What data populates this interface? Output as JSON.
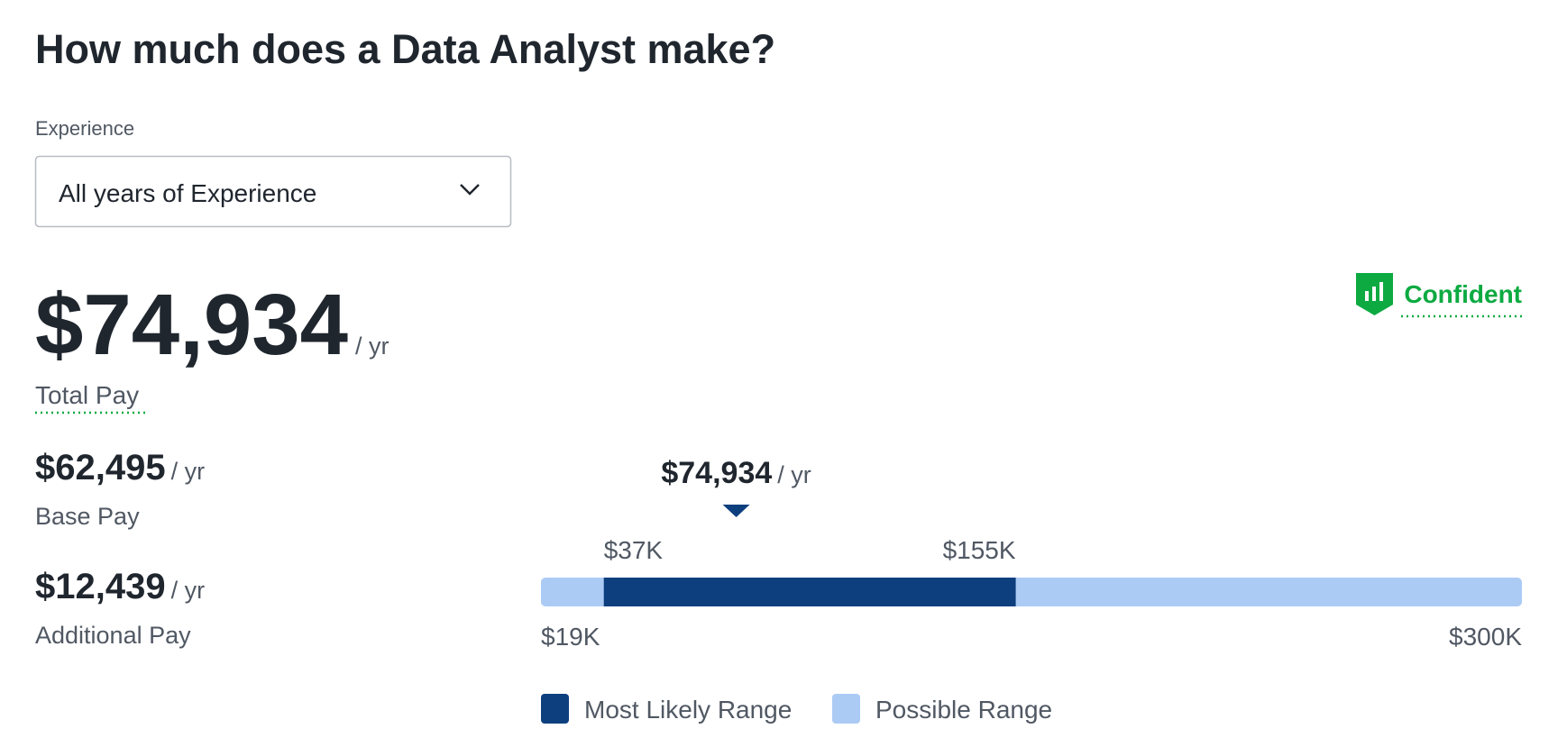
{
  "header": {
    "title": "How much does a Data Analyst make?"
  },
  "filter": {
    "label": "Experience",
    "selected": "All years of Experience"
  },
  "confidence": "Confident",
  "total_pay": {
    "amount": "$74,934",
    "unit": "/ yr",
    "label": "Total Pay"
  },
  "base_pay": {
    "amount": "$62,495",
    "unit": "/ yr",
    "label": "Base Pay"
  },
  "additional_pay": {
    "amount": "$12,439",
    "unit": "/ yr",
    "label": "Additional Pay"
  },
  "salary_range": {
    "marker": {
      "value": 74934,
      "label": "$74,934"
    },
    "marker_unit": "/ yr",
    "min": {
      "value": 19000,
      "label": "$19K"
    },
    "max": {
      "value": 300000,
      "label": "$300K"
    },
    "likely_low": {
      "value": 37000,
      "label": "$37K"
    },
    "likely_high": {
      "value": 155000,
      "label": "$155K"
    },
    "colors": {
      "likely": "#0d3f7f",
      "possible": "#abcbf5"
    }
  },
  "legend": {
    "likely": "Most Likely Range",
    "possible": "Possible Range"
  }
}
